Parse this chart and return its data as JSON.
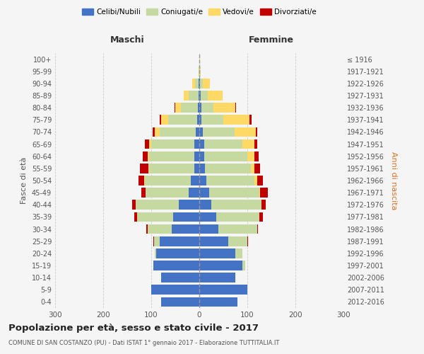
{
  "age_groups": [
    "0-4",
    "5-9",
    "10-14",
    "15-19",
    "20-24",
    "25-29",
    "30-34",
    "35-39",
    "40-44",
    "45-49",
    "50-54",
    "55-59",
    "60-64",
    "65-69",
    "70-74",
    "75-79",
    "80-84",
    "85-89",
    "90-94",
    "95-99",
    "100+"
  ],
  "birth_years": [
    "2012-2016",
    "2007-2011",
    "2002-2006",
    "1997-2001",
    "1992-1996",
    "1987-1991",
    "1982-1986",
    "1977-1981",
    "1972-1976",
    "1967-1971",
    "1962-1966",
    "1957-1961",
    "1952-1956",
    "1947-1951",
    "1942-1946",
    "1937-1941",
    "1932-1936",
    "1927-1931",
    "1922-1926",
    "1917-1921",
    "≤ 1916"
  ],
  "males": {
    "celibi": [
      80,
      100,
      80,
      95,
      90,
      82,
      58,
      55,
      42,
      22,
      18,
      10,
      10,
      10,
      8,
      5,
      3,
      2,
      1,
      0,
      0
    ],
    "coniugati": [
      0,
      0,
      0,
      0,
      3,
      12,
      50,
      75,
      90,
      90,
      95,
      95,
      95,
      90,
      75,
      60,
      35,
      20,
      8,
      1,
      0
    ],
    "vedovi": [
      0,
      0,
      0,
      0,
      0,
      0,
      0,
      0,
      0,
      0,
      1,
      1,
      2,
      5,
      10,
      15,
      12,
      10,
      5,
      1,
      0
    ],
    "divorziati": [
      0,
      0,
      0,
      0,
      0,
      2,
      3,
      5,
      8,
      8,
      12,
      18,
      10,
      8,
      4,
      2,
      1,
      0,
      0,
      0,
      0
    ]
  },
  "females": {
    "nubili": [
      80,
      100,
      75,
      90,
      75,
      60,
      40,
      35,
      25,
      20,
      15,
      12,
      10,
      10,
      8,
      5,
      5,
      3,
      2,
      0,
      0
    ],
    "coniugate": [
      0,
      0,
      0,
      5,
      15,
      40,
      80,
      90,
      105,
      105,
      100,
      95,
      90,
      80,
      65,
      45,
      25,
      15,
      5,
      1,
      0
    ],
    "vedove": [
      0,
      0,
      0,
      0,
      0,
      0,
      0,
      0,
      0,
      2,
      5,
      8,
      15,
      25,
      45,
      55,
      45,
      30,
      15,
      2,
      1
    ],
    "divorziate": [
      0,
      0,
      0,
      0,
      0,
      2,
      2,
      8,
      8,
      15,
      12,
      12,
      8,
      5,
      2,
      4,
      2,
      1,
      0,
      0,
      0
    ]
  },
  "colors": {
    "celibi": "#4472c4",
    "coniugati": "#c5d9a0",
    "vedovi": "#ffd966",
    "divorziati": "#c00000"
  },
  "title": "Popolazione per età, sesso e stato civile - 2017",
  "subtitle": "COMUNE DI SAN COSTANZO (PU) - Dati ISTAT 1° gennaio 2017 - Elaborazione TUTTITALIA.IT",
  "xlabel_left": "Maschi",
  "xlabel_right": "Femmine",
  "ylabel_left": "Fasce di età",
  "ylabel_right": "Anni di nascita",
  "xlim": 300,
  "bg_color": "#f5f5f5",
  "grid_color": "#cccccc"
}
